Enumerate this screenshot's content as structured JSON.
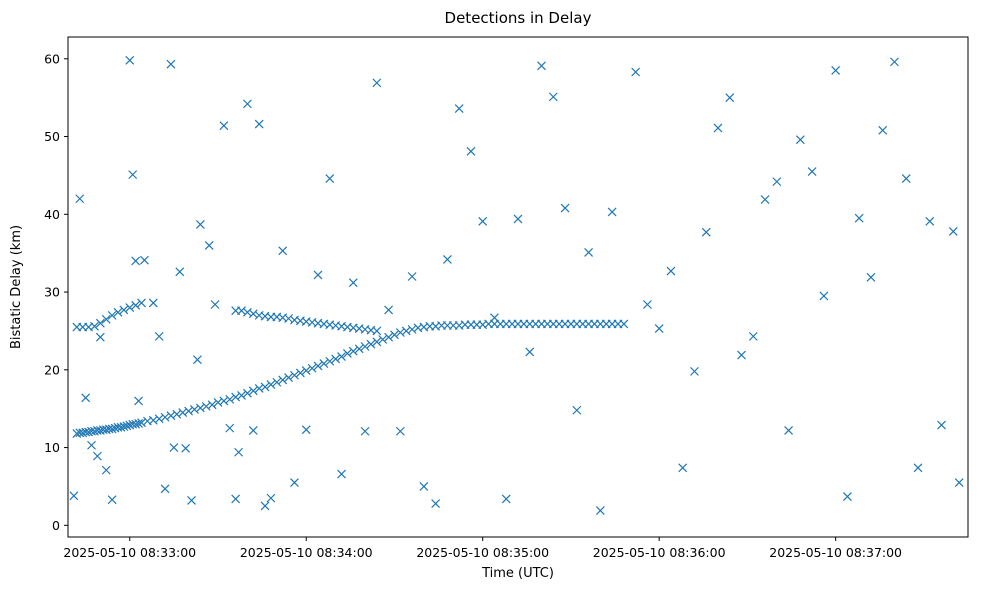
{
  "chart_data": {
    "type": "scatter",
    "title": "Detections in Delay",
    "xlabel": "Time (UTC)",
    "ylabel": "Bistatic Delay (km)",
    "x_tick_labels": [
      "2025-05-10 08:33:00",
      "2025-05-10 08:34:00",
      "2025-05-10 08:35:00",
      "2025-05-10 08:36:00",
      "2025-05-10 08:37:00"
    ],
    "y_ticks": [
      0,
      10,
      20,
      30,
      40,
      50,
      60
    ],
    "xlim": [
      "2025-05-10 08:32:39",
      "2025-05-10 08:37:45"
    ],
    "ylim": [
      -1.5,
      62.8
    ],
    "grid": false,
    "marker": "x",
    "color": "#1f77b4",
    "series": [
      {
        "x": [
          "08:32:42",
          "08:32:43",
          "08:32:44",
          "08:32:45",
          "08:32:46",
          "08:32:47",
          "08:32:48",
          "08:32:49",
          "08:32:50",
          "08:32:51",
          "08:32:52",
          "08:32:53",
          "08:32:54",
          "08:32:55",
          "08:32:56",
          "08:32:57",
          "08:32:58",
          "08:32:59",
          "08:33:00",
          "08:33:01",
          "08:33:02",
          "08:33:03",
          "08:33:04",
          "08:33:06",
          "08:33:08",
          "08:33:10",
          "08:33:12",
          "08:33:14",
          "08:33:16",
          "08:33:18",
          "08:33:20",
          "08:33:22",
          "08:33:24",
          "08:33:26",
          "08:33:28",
          "08:33:30",
          "08:33:32",
          "08:33:34",
          "08:33:36",
          "08:33:38",
          "08:33:40",
          "08:33:42",
          "08:33:44",
          "08:33:46",
          "08:33:48",
          "08:33:50",
          "08:33:52",
          "08:33:54",
          "08:33:56",
          "08:33:58",
          "08:34:00",
          "08:34:02",
          "08:34:04",
          "08:34:06",
          "08:34:08",
          "08:34:10",
          "08:34:12",
          "08:34:14",
          "08:34:16",
          "08:34:18",
          "08:34:20",
          "08:34:22",
          "08:34:24",
          "08:34:26",
          "08:34:28",
          "08:34:30",
          "08:34:32",
          "08:34:34",
          "08:34:36",
          "08:34:38",
          "08:34:40",
          "08:34:42",
          "08:34:44",
          "08:34:46",
          "08:34:48",
          "08:34:50",
          "08:34:52",
          "08:34:54",
          "08:34:56",
          "08:34:58",
          "08:35:00",
          "08:35:02",
          "08:35:04",
          "08:35:06",
          "08:35:08",
          "08:35:10",
          "08:35:12",
          "08:35:14",
          "08:35:16",
          "08:35:18",
          "08:35:20",
          "08:35:22",
          "08:35:24",
          "08:35:26",
          "08:35:28",
          "08:35:30",
          "08:35:32",
          "08:35:34",
          "08:35:36",
          "08:35:38",
          "08:35:40",
          "08:35:42",
          "08:35:44",
          "08:35:46",
          "08:35:48"
        ],
        "y": [
          11.8,
          11.9,
          11.9,
          12.0,
          12.0,
          12.1,
          12.1,
          12.2,
          12.2,
          12.3,
          12.3,
          12.4,
          12.4,
          12.5,
          12.6,
          12.6,
          12.7,
          12.8,
          12.9,
          13.0,
          13.0,
          13.1,
          13.2,
          13.4,
          13.5,
          13.7,
          13.9,
          14.1,
          14.3,
          14.5,
          14.7,
          14.9,
          15.1,
          15.3,
          15.5,
          15.8,
          16.0,
          16.2,
          16.5,
          16.7,
          17.0,
          17.3,
          17.6,
          17.8,
          18.1,
          18.4,
          18.7,
          19.0,
          19.3,
          19.6,
          19.9,
          20.2,
          20.5,
          20.8,
          21.1,
          21.4,
          21.7,
          22.1,
          22.4,
          22.7,
          23.0,
          23.3,
          23.6,
          23.9,
          24.2,
          24.5,
          24.8,
          25.0,
          25.2,
          25.4,
          25.5,
          25.6,
          25.6,
          25.7,
          25.7,
          25.7,
          25.7,
          25.8,
          25.8,
          25.8,
          25.8,
          25.9,
          25.9,
          25.9,
          25.9,
          25.9,
          25.9,
          25.9,
          25.9,
          25.9,
          25.9,
          25.9,
          25.9,
          25.9,
          25.9,
          25.9,
          25.9,
          25.9,
          25.9,
          25.9,
          25.9,
          25.9,
          25.9,
          25.9,
          25.9
        ]
      },
      {
        "x": [
          "08:32:42",
          "08:32:44",
          "08:32:46",
          "08:32:48",
          "08:32:50",
          "08:32:52",
          "08:32:54",
          "08:32:56",
          "08:32:58",
          "08:33:00",
          "08:33:02",
          "08:33:04",
          "08:33:36",
          "08:33:38",
          "08:33:40",
          "08:33:42",
          "08:33:44",
          "08:33:46",
          "08:33:48",
          "08:33:50",
          "08:33:52",
          "08:33:54",
          "08:33:56",
          "08:33:58",
          "08:34:00",
          "08:34:02",
          "08:34:04",
          "08:34:06",
          "08:34:08",
          "08:34:10",
          "08:34:12",
          "08:34:14",
          "08:34:16",
          "08:34:18",
          "08:34:20",
          "08:34:22",
          "08:34:24"
        ],
        "y": [
          25.5,
          25.5,
          25.5,
          25.6,
          26.0,
          26.5,
          27.0,
          27.4,
          27.7,
          28.0,
          28.3,
          28.6,
          27.6,
          27.6,
          27.4,
          27.2,
          27.0,
          26.9,
          26.8,
          26.8,
          26.7,
          26.6,
          26.4,
          26.3,
          26.2,
          26.1,
          26.0,
          25.9,
          25.8,
          25.7,
          25.6,
          25.5,
          25.4,
          25.3,
          25.2,
          25.1,
          25.0
        ]
      },
      {
        "x": [
          "08:32:41",
          "08:32:43",
          "08:32:45",
          "08:32:47",
          "08:32:49",
          "08:32:50",
          "08:32:52",
          "08:32:54",
          "08:33:00",
          "08:33:01",
          "08:33:02",
          "08:33:03",
          "08:33:05",
          "08:33:08",
          "08:33:10",
          "08:33:12",
          "08:33:14",
          "08:33:15",
          "08:33:17",
          "08:33:19",
          "08:33:21",
          "08:33:23",
          "08:33:24",
          "08:33:27",
          "08:33:29",
          "08:33:32",
          "08:33:34",
          "08:33:36",
          "08:33:37",
          "08:33:40",
          "08:33:42",
          "08:33:44",
          "08:33:46",
          "08:33:48",
          "08:33:52",
          "08:33:56",
          "08:34:00",
          "08:34:04",
          "08:34:08",
          "08:34:12",
          "08:34:16",
          "08:34:20",
          "08:34:24",
          "08:34:28",
          "08:34:32",
          "08:34:36",
          "08:34:40",
          "08:34:44",
          "08:34:48",
          "08:34:52",
          "08:34:56",
          "08:35:00",
          "08:35:04",
          "08:35:08",
          "08:35:12",
          "08:35:16",
          "08:35:20",
          "08:35:24",
          "08:35:28",
          "08:35:32",
          "08:35:36",
          "08:35:40",
          "08:35:44",
          "08:35:52",
          "08:35:56",
          "08:36:00",
          "08:36:04",
          "08:36:08",
          "08:36:12",
          "08:36:16",
          "08:36:20",
          "08:36:24",
          "08:36:28",
          "08:36:32",
          "08:36:36",
          "08:36:40",
          "08:36:44",
          "08:36:48",
          "08:36:52",
          "08:36:56",
          "08:37:00",
          "08:37:04",
          "08:37:08",
          "08:37:12",
          "08:37:16",
          "08:37:20",
          "08:37:24",
          "08:37:28",
          "08:37:32",
          "08:37:36",
          "08:37:40",
          "08:37:42"
        ],
        "y": [
          3.8,
          42.0,
          16.4,
          10.3,
          8.9,
          24.2,
          7.1,
          3.3,
          59.8,
          45.1,
          34.0,
          16.0,
          34.1,
          28.6,
          24.3,
          4.7,
          59.3,
          10.0,
          32.6,
          9.9,
          3.2,
          21.3,
          38.7,
          36.0,
          28.4,
          51.4,
          12.5,
          3.4,
          9.4,
          54.2,
          12.2,
          51.6,
          2.5,
          3.5,
          35.3,
          5.5,
          12.3,
          32.2,
          44.6,
          6.6,
          31.2,
          12.1,
          56.9,
          27.7,
          12.1,
          32.0,
          5.0,
          2.8,
          34.2,
          53.6,
          48.1,
          39.1,
          26.7,
          3.4,
          39.4,
          22.3,
          59.1,
          55.1,
          40.8,
          14.8,
          35.1,
          1.9,
          40.3,
          58.3,
          28.4,
          25.3,
          32.7,
          7.4,
          19.8,
          37.7,
          51.1,
          55.0,
          21.9,
          24.3,
          41.9,
          44.2,
          12.2,
          49.6,
          45.5,
          29.5,
          58.5,
          3.7,
          39.5,
          31.9,
          50.8,
          59.6,
          44.6,
          7.4,
          39.1,
          12.9,
          37.8,
          5.5
        ]
      }
    ]
  }
}
